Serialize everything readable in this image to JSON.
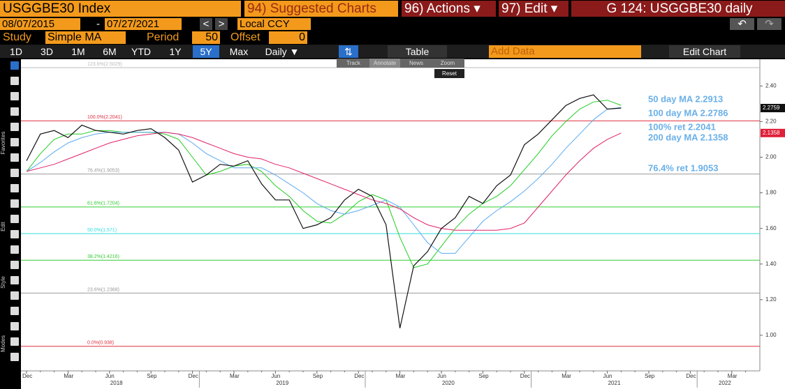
{
  "header": {
    "security": "USGGBE30 Index",
    "suggested": "94) Suggested Charts",
    "actions": "96) Actions ▾",
    "edit": "97) Edit ▾",
    "chart_id": "G 124: USGGBE30 daily"
  },
  "dates": {
    "start": "08/07/2015",
    "sep": "-",
    "end": "07/27/2021",
    "currency": "Local CCY"
  },
  "study": {
    "label": "Study",
    "type": "Simple MA",
    "period_label": "Period",
    "period": "50",
    "offset_label": "Offset",
    "offset": "0"
  },
  "periods": [
    "1D",
    "3D",
    "1M",
    "6M",
    "YTD",
    "1Y",
    "5Y",
    "Max"
  ],
  "frequency": "Daily ▼",
  "table": "Table",
  "add_data": "Add Data",
  "edit_chart": "Edit Chart",
  "tools": [
    "Track",
    "Annotate",
    "News",
    "Zoom"
  ],
  "reset": "Reset",
  "sidebar": [
    "Favorites",
    "Edit",
    "Style",
    "Modes"
  ],
  "chart_data": {
    "type": "line",
    "categories": [
      "Dec",
      null,
      null,
      "Mar",
      null,
      null,
      "Jun",
      null,
      null,
      "Sep",
      null,
      null,
      "Dec",
      null,
      null,
      "Mar",
      null,
      null,
      "Jun",
      null,
      null,
      "Sep",
      null,
      null,
      "Dec",
      null,
      null,
      "Mar",
      null,
      null,
      "Jun",
      null,
      null,
      "Sep",
      null,
      null,
      "Dec",
      null,
      null,
      "Mar",
      null,
      null,
      "Jun",
      null,
      null,
      "Sep",
      null,
      null,
      "Dec",
      null,
      null,
      "Mar",
      null
    ],
    "years": [
      "2018",
      "2019",
      "2020",
      "2021",
      "2022"
    ],
    "series": [
      {
        "color": "#111111",
        "values": [
          1.98,
          2.13,
          2.15,
          2.11,
          2.18,
          2.15,
          2.14,
          2.13,
          2.15,
          2.16,
          2.11,
          2.04,
          1.86,
          1.9,
          1.96,
          1.95,
          1.98,
          1.85,
          1.76,
          1.76,
          1.6,
          1.62,
          1.66,
          1.76,
          1.82,
          1.78,
          1.62,
          1.04,
          1.39,
          1.47,
          1.6,
          1.66,
          1.78,
          1.74,
          1.84,
          1.9,
          2.07,
          2.13,
          2.21,
          2.29,
          2.33,
          2.35,
          2.27,
          2.2759,
          null,
          null,
          null,
          null,
          null,
          null,
          null,
          null,
          null
        ]
      },
      {
        "color": "#22cc22",
        "values": [
          1.92,
          2.02,
          2.1,
          2.13,
          2.13,
          2.15,
          2.15,
          2.14,
          2.14,
          2.14,
          2.13,
          2.1,
          2.0,
          1.9,
          1.92,
          1.95,
          1.96,
          1.92,
          1.84,
          1.78,
          1.7,
          1.64,
          1.63,
          1.68,
          1.75,
          1.79,
          1.76,
          1.55,
          1.38,
          1.4,
          1.5,
          1.6,
          1.68,
          1.74,
          1.78,
          1.84,
          1.93,
          2.02,
          2.12,
          2.2,
          2.27,
          2.31,
          2.32,
          2.2913,
          null,
          null,
          null,
          null,
          null,
          null,
          null,
          null,
          null
        ]
      },
      {
        "color": "#5aaaf0",
        "values": [
          1.92,
          1.97,
          2.03,
          2.08,
          2.11,
          2.13,
          2.14,
          2.14,
          2.14,
          2.14,
          2.14,
          2.13,
          2.08,
          2.02,
          1.98,
          1.94,
          1.94,
          1.94,
          1.9,
          1.85,
          1.8,
          1.74,
          1.7,
          1.68,
          1.7,
          1.73,
          1.76,
          1.72,
          1.62,
          1.52,
          1.46,
          1.46,
          1.55,
          1.64,
          1.7,
          1.75,
          1.81,
          1.88,
          1.96,
          2.05,
          2.13,
          2.21,
          2.27,
          2.2786,
          null,
          null,
          null,
          null,
          null,
          null,
          null,
          null,
          null
        ]
      },
      {
        "color": "#e0206a",
        "values": [
          1.92,
          1.94,
          1.96,
          1.99,
          2.02,
          2.05,
          2.08,
          2.1,
          2.12,
          2.13,
          2.14,
          2.13,
          2.11,
          2.08,
          2.05,
          2.02,
          2.0,
          1.99,
          1.96,
          1.94,
          1.91,
          1.88,
          1.85,
          1.82,
          1.79,
          1.76,
          1.74,
          1.71,
          1.66,
          1.62,
          1.6,
          1.59,
          1.59,
          1.59,
          1.59,
          1.6,
          1.63,
          1.72,
          1.81,
          1.9,
          1.98,
          2.05,
          2.1,
          2.1358,
          null,
          null,
          null,
          null,
          null,
          null,
          null,
          null,
          null
        ]
      }
    ],
    "ylim": [
      0.8,
      2.55
    ],
    "yticks": [
      {
        "value": 1,
        "label": "1.00"
      },
      {
        "value": 1.2,
        "label": "1.20"
      },
      {
        "value": 1.4,
        "label": "1.40"
      },
      {
        "value": 1.6,
        "label": "1.60"
      },
      {
        "value": 1.8,
        "label": "1.80"
      },
      {
        "value": 2,
        "label": "2.00"
      },
      {
        "value": 2.2,
        "label": "2.20"
      },
      {
        "value": 2.4,
        "label": "2.40"
      }
    ],
    "grid": false,
    "levels": [
      {
        "label": "123.6%(2.5029)",
        "value": 2.5029,
        "color": "#bbbbbb"
      },
      {
        "label": "100.0%(2.2041)",
        "value": 2.2041,
        "color": "#e03040"
      },
      {
        "label": "76.4%(1.9053)",
        "value": 1.9053,
        "color": "#999999"
      },
      {
        "label": "61.8%(1.7204)",
        "value": 1.7204,
        "color": "#33cc33"
      },
      {
        "label": "50.0%(1.571)",
        "value": 1.571,
        "color": "#33dddd"
      },
      {
        "label": "38.2%(1.4216)",
        "value": 1.4216,
        "color": "#33cc33"
      },
      {
        "label": "23.6%(1.2368)",
        "value": 1.2368,
        "color": "#999999"
      },
      {
        "label": "0.0%(0.938)",
        "value": 0.938,
        "color": "#e03040"
      }
    ],
    "markers": [
      {
        "value": 2.2759,
        "color": "#111111"
      },
      {
        "value": 2.1358,
        "color": "#e0203a"
      }
    ],
    "annotations": [
      "50 day MA 2.2913",
      "100 day MA 2.2786",
      "100% ret 2.2041",
      "200 day MA 2.1358",
      "76.4% ret 1.9053"
    ]
  }
}
